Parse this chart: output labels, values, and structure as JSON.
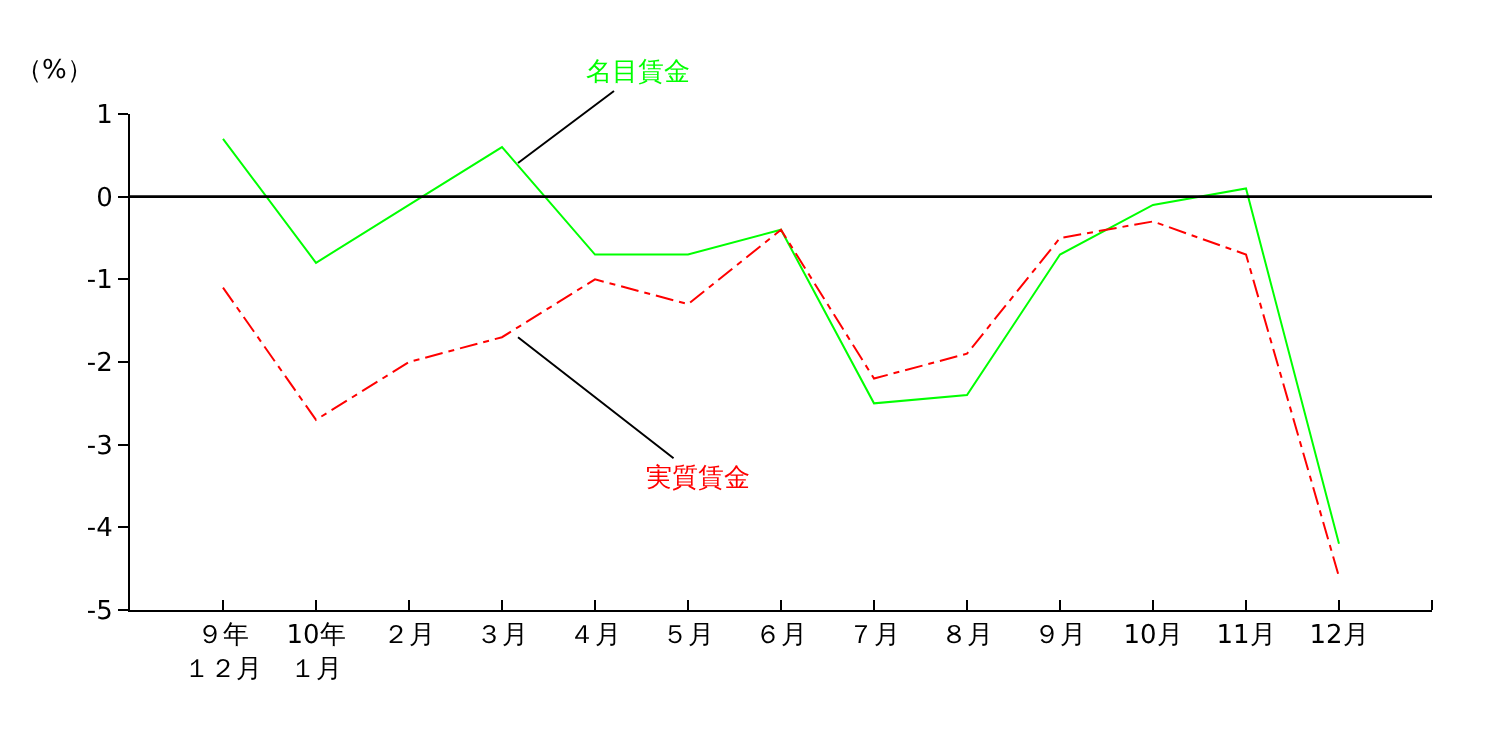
{
  "chart_data": {
    "type": "line",
    "ylabel": "（%）",
    "categories": [
      "９年１２月",
      "10年１月",
      "２月",
      "３月",
      "４月",
      "５月",
      "６月",
      "７月",
      "８月",
      "９月",
      "10月",
      "11月",
      "12月"
    ],
    "series": [
      {
        "name": "名目賃金",
        "color": "#00ff00",
        "line_style": "solid",
        "values": [
          0.7,
          -0.8,
          -0.1,
          0.6,
          -0.7,
          -0.7,
          -0.4,
          -2.5,
          -2.4,
          -0.7,
          -0.1,
          0.1,
          -4.2
        ]
      },
      {
        "name": "実質賃金",
        "color": "#ff0000",
        "line_style": "dashdot",
        "values": [
          -1.1,
          -2.7,
          -2.0,
          -1.7,
          -1.0,
          -1.3,
          -0.4,
          -2.2,
          -1.9,
          -0.5,
          -0.3,
          -0.7,
          -4.6
        ]
      }
    ],
    "ref_lines": [
      {
        "axis": "y",
        "value": 0,
        "color": "#000000"
      }
    ],
    "ylim": [
      -5,
      1
    ],
    "yticks": [
      -5,
      -4,
      -3,
      -2,
      -1,
      0,
      1
    ],
    "legend": false,
    "marker": "none"
  }
}
